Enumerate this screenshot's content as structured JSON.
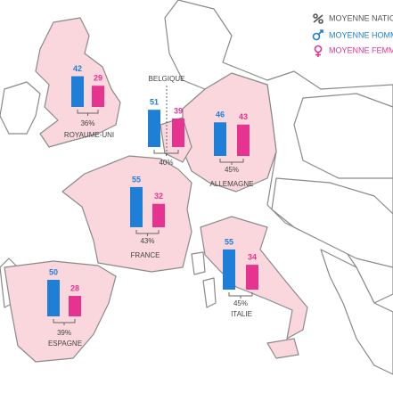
{
  "legend": [
    {
      "label": "MOYENNE NATIONALE"
    },
    {
      "label": "MOYENNE HOMMES"
    },
    {
      "label": "MOYENNE FEMMES"
    }
  ],
  "countries": [
    {
      "name": "ROYAUME-UNI",
      "male": 42,
      "female": 29,
      "average": "36%"
    },
    {
      "name": "BELGIQUE",
      "male": 51,
      "female": 39,
      "average": "40%"
    },
    {
      "name": "ALLEMAGNE",
      "male": 46,
      "female": 43,
      "average": "45%"
    },
    {
      "name": "FRANCE",
      "male": 55,
      "female": 32,
      "average": "43%"
    },
    {
      "name": "ITALIE",
      "male": 55,
      "female": 34,
      "average": "45%"
    },
    {
      "name": "ESPAGNE",
      "male": 50,
      "female": 28,
      "average": "39%"
    }
  ]
}
